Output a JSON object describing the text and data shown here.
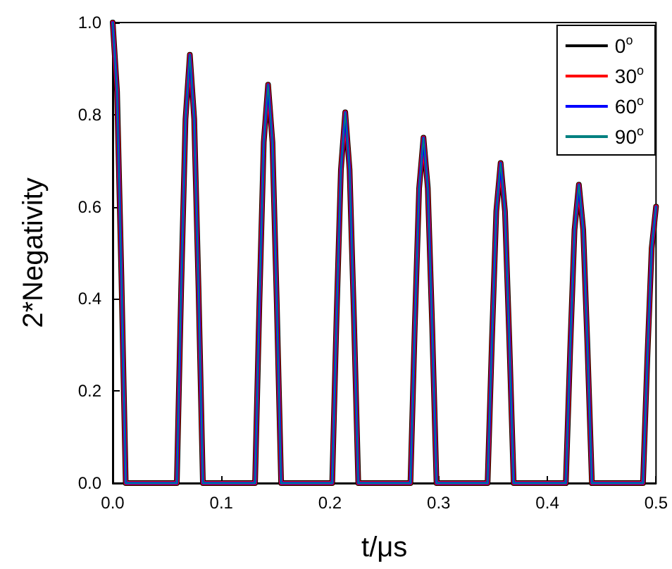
{
  "chart_data": {
    "type": "line",
    "xlabel": "t/μs",
    "ylabel": "2*Negativity",
    "x": [
      0,
      0.004,
      0.008,
      0.012,
      0.059,
      0.063,
      0.067,
      0.071,
      0.075,
      0.079,
      0.083,
      0.131,
      0.135,
      0.139,
      0.143,
      0.147,
      0.151,
      0.155,
      0.202,
      0.206,
      0.21,
      0.214,
      0.218,
      0.222,
      0.226,
      0.274,
      0.278,
      0.282,
      0.286,
      0.29,
      0.294,
      0.298,
      0.345,
      0.349,
      0.353,
      0.357,
      0.361,
      0.365,
      0.369,
      0.417,
      0.421,
      0.425,
      0.429,
      0.433,
      0.437,
      0.441,
      0.488,
      0.492,
      0.496,
      0.5
    ],
    "series": [
      {
        "name": "0$^{o}$",
        "color": "#000000",
        "values": [
          1,
          0.85,
          0.45,
          0,
          0,
          0.42,
          0.79,
          0.93,
          0.79,
          0.42,
          0,
          0,
          0.39,
          0.74,
          0.865,
          0.74,
          0.39,
          0,
          0,
          0.36,
          0.68,
          0.805,
          0.68,
          0.36,
          0,
          0,
          0.34,
          0.64,
          0.75,
          0.64,
          0.34,
          0,
          0,
          0.31,
          0.59,
          0.695,
          0.59,
          0.31,
          0,
          0,
          0.29,
          0.55,
          0.648,
          0.55,
          0.29,
          0,
          0,
          0.27,
          0.51,
          0.6
        ]
      },
      {
        "name": "30$^{o}$",
        "color": "#ff0000",
        "values": [
          1,
          0.85,
          0.45,
          0,
          0,
          0.42,
          0.79,
          0.93,
          0.79,
          0.42,
          0,
          0,
          0.39,
          0.74,
          0.865,
          0.74,
          0.39,
          0,
          0,
          0.36,
          0.68,
          0.805,
          0.68,
          0.36,
          0,
          0,
          0.34,
          0.64,
          0.75,
          0.64,
          0.34,
          0,
          0,
          0.31,
          0.59,
          0.695,
          0.59,
          0.31,
          0,
          0,
          0.29,
          0.55,
          0.648,
          0.55,
          0.29,
          0,
          0,
          0.27,
          0.51,
          0.6
        ]
      },
      {
        "name": "60$^{o}$",
        "color": "#0000ff",
        "values": [
          1,
          0.85,
          0.45,
          0,
          0,
          0.42,
          0.79,
          0.93,
          0.79,
          0.42,
          0,
          0,
          0.39,
          0.74,
          0.865,
          0.74,
          0.39,
          0,
          0,
          0.36,
          0.68,
          0.805,
          0.68,
          0.36,
          0,
          0,
          0.34,
          0.64,
          0.75,
          0.64,
          0.34,
          0,
          0,
          0.31,
          0.59,
          0.695,
          0.59,
          0.31,
          0,
          0,
          0.29,
          0.55,
          0.648,
          0.55,
          0.29,
          0,
          0,
          0.27,
          0.51,
          0.6
        ]
      },
      {
        "name": "90$^{o}$",
        "color": "#008080",
        "values": [
          1,
          0.85,
          0.45,
          0,
          0,
          0.42,
          0.79,
          0.93,
          0.79,
          0.42,
          0,
          0,
          0.39,
          0.74,
          0.865,
          0.74,
          0.39,
          0,
          0,
          0.36,
          0.68,
          0.805,
          0.68,
          0.36,
          0,
          0,
          0.34,
          0.64,
          0.75,
          0.64,
          0.34,
          0,
          0,
          0.31,
          0.59,
          0.695,
          0.59,
          0.31,
          0,
          0,
          0.29,
          0.55,
          0.648,
          0.55,
          0.29,
          0,
          0,
          0.27,
          0.51,
          0.6
        ]
      }
    ],
    "xlim": [
      0,
      0.5
    ],
    "xticks": [
      {
        "value": 0,
        "label": "0.0"
      },
      0.1,
      0.2,
      0.3,
      0.4,
      0.5
    ],
    "ylim": [
      0,
      1.0
    ],
    "yticks": [
      {
        "value": 0,
        "label": "0.0"
      },
      0.2,
      0.4,
      0.6,
      0.8,
      {
        "value": 1,
        "label": "1.0"
      }
    ],
    "legend": "top right",
    "grid": false,
    "marker": "none",
    "line_style": "solid"
  }
}
